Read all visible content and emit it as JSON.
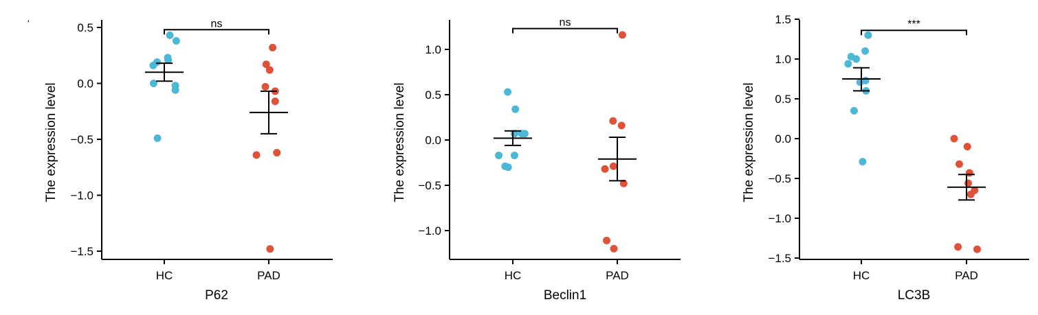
{
  "corner_mark": "'",
  "colors": {
    "hc": "#4db8d6",
    "pad": "#e05238",
    "axis": "#000000"
  },
  "chart_data": [
    {
      "type": "scatter",
      "subplot_label": "P62",
      "xlabel": "P62",
      "ylabel": "The expression level",
      "categories": [
        "HC",
        "PAD"
      ],
      "ylim": [
        -1.55,
        0.55
      ],
      "yticks": [
        0.5,
        0.0,
        -0.5,
        -1.0,
        -1.5
      ],
      "ytick_labels": [
        "0.5",
        "0.0",
        "−0.5",
        "−1.0",
        "−1.5"
      ],
      "series": [
        {
          "category": "HC",
          "points": [
            {
              "dx": -0.26,
              "y": 0.16
            },
            {
              "dx": -0.25,
              "y": 0.0
            },
            {
              "dx": -0.17,
              "y": 0.19
            },
            {
              "dx": -0.16,
              "y": -0.49
            },
            {
              "dx": 0.08,
              "y": 0.23
            },
            {
              "dx": 0.09,
              "y": 0.21
            },
            {
              "dx": 0.13,
              "y": 0.43
            },
            {
              "dx": 0.26,
              "y": -0.02
            },
            {
              "dx": 0.26,
              "y": -0.06
            },
            {
              "dx": 0.28,
              "y": 0.38
            }
          ],
          "mean": 0.1,
          "error_low": 0.02,
          "error_high": 0.18
        },
        {
          "category": "PAD",
          "points": [
            {
              "dx": -0.29,
              "y": -0.64
            },
            {
              "dx": -0.08,
              "y": -0.03
            },
            {
              "dx": -0.06,
              "y": 0.17
            },
            {
              "dx": 0.02,
              "y": 0.12
            },
            {
              "dx": 0.03,
              "y": -1.48
            },
            {
              "dx": 0.09,
              "y": 0.32
            },
            {
              "dx": 0.15,
              "y": -0.07
            },
            {
              "dx": 0.15,
              "y": -0.16
            },
            {
              "dx": 0.19,
              "y": -0.62
            }
          ],
          "mean": -0.26,
          "error_low": -0.45,
          "error_high": -0.07
        }
      ],
      "significance": {
        "label": "ns",
        "y": 0.48
      }
    },
    {
      "type": "scatter",
      "subplot_label": "Beclin1",
      "xlabel": "Beclin1",
      "ylabel": "The expression level",
      "categories": [
        "HC",
        "PAD"
      ],
      "ylim": [
        -1.32,
        1.35
      ],
      "yticks": [
        1.0,
        0.5,
        0.0,
        -0.5,
        -1.0
      ],
      "ytick_labels": [
        "1.0",
        "0.5",
        "0.0",
        "−0.5",
        "−1.0"
      ],
      "series": [
        {
          "category": "HC",
          "points": [
            {
              "dx": -0.33,
              "y": -0.17
            },
            {
              "dx": -0.18,
              "y": -0.29
            },
            {
              "dx": -0.12,
              "y": 0.53
            },
            {
              "dx": -0.11,
              "y": -0.3
            },
            {
              "dx": 0.04,
              "y": -0.17
            },
            {
              "dx": 0.04,
              "y": 0.07
            },
            {
              "dx": 0.06,
              "y": 0.34
            },
            {
              "dx": 0.21,
              "y": 0.07
            },
            {
              "dx": 0.28,
              "y": 0.07
            }
          ],
          "mean": 0.02,
          "error_low": -0.06,
          "error_high": 0.1
        },
        {
          "category": "PAD",
          "points": [
            {
              "dx": -0.29,
              "y": -0.32
            },
            {
              "dx": -0.25,
              "y": -1.11
            },
            {
              "dx": -0.1,
              "y": 0.21
            },
            {
              "dx": -0.09,
              "y": -0.29
            },
            {
              "dx": -0.08,
              "y": -1.2
            },
            {
              "dx": 0.1,
              "y": 0.16
            },
            {
              "dx": 0.12,
              "y": 1.16
            },
            {
              "dx": 0.15,
              "y": -0.48
            }
          ],
          "mean": -0.21,
          "error_low": -0.45,
          "error_high": 0.03
        }
      ],
      "significance": {
        "label": "ns",
        "y": 1.23
      }
    },
    {
      "type": "scatter",
      "subplot_label": "LC3B",
      "xlabel": "LC3B",
      "ylabel": "The expression level",
      "categories": [
        "HC",
        "PAD"
      ],
      "ylim": [
        -1.52,
        1.5
      ],
      "yticks": [
        1.5,
        1.0,
        0.5,
        0.0,
        -0.5,
        -1.0,
        -1.5
      ],
      "ytick_labels": [
        "1.5",
        "1.0",
        "0.5",
        "0.0",
        "−0.5",
        "−1.0",
        "−1.5"
      ],
      "series": [
        {
          "category": "HC",
          "points": [
            {
              "dx": -0.31,
              "y": 0.94
            },
            {
              "dx": -0.24,
              "y": 1.03
            },
            {
              "dx": -0.17,
              "y": 0.35
            },
            {
              "dx": -0.12,
              "y": 1.0
            },
            {
              "dx": -0.03,
              "y": 0.71
            },
            {
              "dx": 0.03,
              "y": -0.29
            },
            {
              "dx": 0.1,
              "y": 0.73
            },
            {
              "dx": 0.09,
              "y": 1.1
            },
            {
              "dx": 0.11,
              "y": 0.6
            },
            {
              "dx": 0.16,
              "y": 1.3
            }
          ],
          "mean": 0.75,
          "error_low": 0.6,
          "error_high": 0.89
        },
        {
          "category": "PAD",
          "points": [
            {
              "dx": -0.29,
              "y": -0.0
            },
            {
              "dx": -0.2,
              "y": -1.36
            },
            {
              "dx": -0.17,
              "y": -0.32
            },
            {
              "dx": 0.02,
              "y": -0.1
            },
            {
              "dx": 0.04,
              "y": -0.56
            },
            {
              "dx": 0.07,
              "y": -0.43
            },
            {
              "dx": 0.1,
              "y": -0.7
            },
            {
              "dx": 0.19,
              "y": -0.65
            },
            {
              "dx": 0.25,
              "y": -1.39
            }
          ],
          "mean": -0.61,
          "error_low": -0.77,
          "error_high": -0.45
        }
      ],
      "significance": {
        "label": "***",
        "y": 1.36
      }
    }
  ]
}
